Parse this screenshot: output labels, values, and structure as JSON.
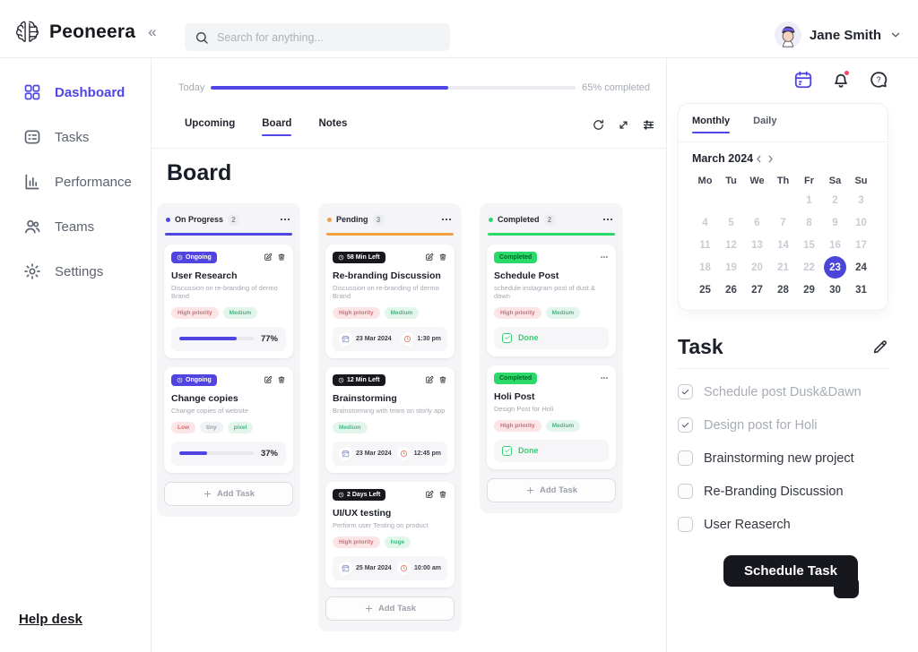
{
  "colors": {
    "accent": "#4F46E5",
    "pending": "#F0A13E",
    "completed": "#2BD96A",
    "notification_dot": "#F4476B",
    "button_black": "#17181D"
  },
  "topbar": {
    "logo": "Peoneera",
    "collapse_icon": "«",
    "search_placeholder": "Search for anything...",
    "user_name": "Jane Smith"
  },
  "sidebar": {
    "items": [
      {
        "id": "dashboard",
        "label": "Dashboard",
        "icon": "grid-icon",
        "active": true
      },
      {
        "id": "tasks",
        "label": "Tasks",
        "icon": "checklist-icon",
        "active": false
      },
      {
        "id": "performance",
        "label": "Performance",
        "icon": "bar-chart-icon",
        "active": false
      },
      {
        "id": "teams",
        "label": "Teams",
        "icon": "users-icon",
        "active": false
      },
      {
        "id": "settings",
        "label": "Settings",
        "icon": "gear-icon",
        "active": false
      }
    ],
    "help_link": "Help desk"
  },
  "main": {
    "today": {
      "label": "Today",
      "percent": 65,
      "status": "65% completed"
    },
    "tabs": [
      {
        "label": "Upcoming",
        "active": false
      },
      {
        "label": "Board",
        "active": true
      },
      {
        "label": "Notes",
        "active": false
      }
    ],
    "toolbar_icons": [
      "history-icon",
      "expand-icon",
      "filter-icon"
    ],
    "board_title": "Board",
    "add_task_label": "Add Task",
    "columns": [
      {
        "name": "On Progress",
        "count": 2,
        "color": "#4F46E5",
        "cards": [
          {
            "badge": {
              "label": "Ongoing",
              "style": "indigo",
              "icon": "clock-icon"
            },
            "actions": [
              "edit-icon",
              "delete-icon"
            ],
            "title": "User Research",
            "subtitle": "Discussion on re-branding of dermo Brand",
            "tags": [
              {
                "label": "High priority",
                "style": "pink"
              },
              {
                "label": "Medium",
                "style": "green"
              }
            ],
            "progress": {
              "percent": 77,
              "label": "77%"
            }
          },
          {
            "badge": {
              "label": "Ongoing",
              "style": "indigo",
              "icon": "clock-icon"
            },
            "actions": [
              "edit-icon",
              "delete-icon"
            ],
            "title": "Change copies",
            "subtitle": "Change copies of website",
            "tags": [
              {
                "label": "Low",
                "style": "pink"
              },
              {
                "label": "tiny",
                "style": "gray"
              },
              {
                "label": "pixel",
                "style": "green"
              }
            ],
            "progress": {
              "percent": 37,
              "label": "37%"
            }
          }
        ]
      },
      {
        "name": "Pending",
        "count": 3,
        "color": "#F0A13E",
        "cards": [
          {
            "badge": {
              "label": "58 Min Left",
              "style": "black",
              "icon": "clock-icon"
            },
            "actions": [
              "edit-icon",
              "delete-icon"
            ],
            "title": "Re-branding Discussion",
            "subtitle": "Discussion on re-branding of dermo Brand",
            "tags": [
              {
                "label": "High priority",
                "style": "pink"
              },
              {
                "label": "Medium",
                "style": "green"
              }
            ],
            "schedule": {
              "date": "23 Mar 2024",
              "time": "1:30 pm"
            }
          },
          {
            "badge": {
              "label": "12 Min Left",
              "style": "black",
              "icon": "clock-icon"
            },
            "actions": [
              "edit-icon",
              "delete-icon"
            ],
            "title": "Brainstorming",
            "subtitle": "Brainstorming with team on storly app",
            "tags": [
              {
                "label": "Medium",
                "style": "green"
              }
            ],
            "schedule": {
              "date": "23 Mar 2024",
              "time": "12:45 pm"
            }
          },
          {
            "badge": {
              "label": "2 Days Left",
              "style": "black",
              "icon": "clock-icon"
            },
            "actions": [
              "edit-icon",
              "delete-icon"
            ],
            "title": "UI/UX testing",
            "subtitle": "Perform user Testing on product",
            "tags": [
              {
                "label": "High priority",
                "style": "pink"
              },
              {
                "label": "huge",
                "style": "green"
              }
            ],
            "schedule": {
              "date": "25 Mar 2024",
              "time": "10:00 am"
            }
          }
        ]
      },
      {
        "name": "Completed",
        "count": 2,
        "color": "#2BD96A",
        "cards": [
          {
            "badge": {
              "label": "Completed",
              "style": "green"
            },
            "actions": [
              "more-icon"
            ],
            "title": "Schedule Post",
            "subtitle": "schedule instagram post of dust & dawn",
            "tags": [
              {
                "label": "High priority",
                "style": "pink"
              },
              {
                "label": "Medium",
                "style": "green"
              }
            ],
            "done_label": "Done"
          },
          {
            "badge": {
              "label": "Completed",
              "style": "green"
            },
            "actions": [
              "more-icon"
            ],
            "title": "Holi Post",
            "subtitle": "Design Post for Holi",
            "tags": [
              {
                "label": "High priority",
                "style": "pink"
              },
              {
                "label": "Medium",
                "style": "green"
              }
            ],
            "done_label": "Done"
          }
        ]
      }
    ]
  },
  "right_panel": {
    "header_icons": [
      "calendar-icon",
      "bell-icon",
      "help-bubble-icon"
    ],
    "calendar": {
      "tabs": [
        {
          "label": "Monthly",
          "active": true
        },
        {
          "label": "Daily",
          "active": false
        }
      ],
      "month": "March 2024",
      "weekdays": [
        "Mo",
        "Tu",
        "We",
        "Th",
        "Fr",
        "Sa",
        "Su"
      ],
      "weeks": [
        [
          "",
          "",
          "",
          "",
          "1",
          "2",
          "3"
        ],
        [
          "4",
          "5",
          "6",
          "7",
          "8",
          "9",
          "10"
        ],
        [
          "11",
          "12",
          "13",
          "14",
          "15",
          "16",
          "17"
        ],
        [
          "18",
          "19",
          "20",
          "21",
          "22",
          "23",
          "24"
        ],
        [
          "25",
          "26",
          "27",
          "28",
          "29",
          "30",
          "31"
        ]
      ],
      "selected_day": "23",
      "muted_days_through": 22
    },
    "tasks": {
      "title": "Task",
      "items": [
        {
          "label": "Schedule post Dusk&Dawn",
          "checked": true
        },
        {
          "label": "Design post for Holi",
          "checked": true
        },
        {
          "label": "Brainstorming new project",
          "checked": false
        },
        {
          "label": "Re-Branding Discussion",
          "checked": false
        },
        {
          "label": "User Reaserch",
          "checked": false
        }
      ],
      "button_label": "Schedule Task"
    }
  }
}
